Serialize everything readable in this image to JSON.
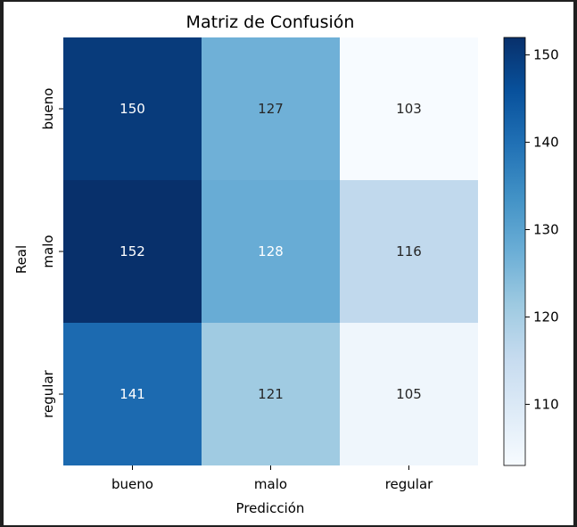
{
  "chart_data": {
    "type": "heatmap",
    "title": "Matriz de Confusión",
    "xlabel": "Predicción",
    "ylabel": "Real",
    "x_categories": [
      "bueno",
      "malo",
      "regular"
    ],
    "y_categories": [
      "bueno",
      "malo",
      "regular"
    ],
    "values": [
      [
        150,
        127,
        103
      ],
      [
        152,
        128,
        116
      ],
      [
        141,
        121,
        105
      ]
    ],
    "colorbar": {
      "ticks": [
        110,
        120,
        130,
        140,
        150
      ],
      "range": [
        103,
        152
      ],
      "colormap": "Blues"
    }
  }
}
